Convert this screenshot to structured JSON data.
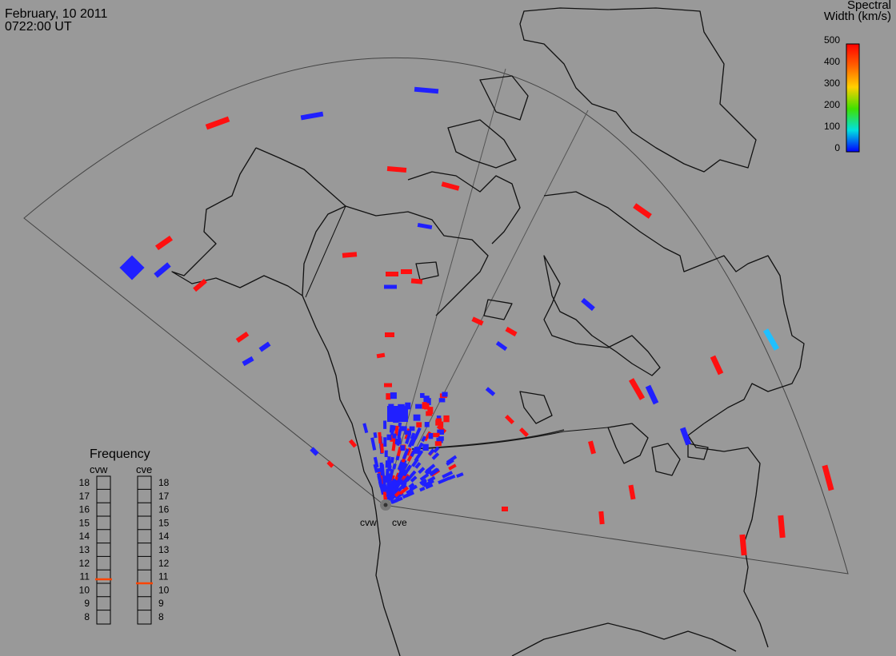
{
  "header": {
    "date": "February, 10 2011",
    "time": "0722:00 UT"
  },
  "colorbar": {
    "title_line1": "Spectral",
    "title_line2": "Width (km/s)",
    "ticks": [
      "500",
      "400",
      "300",
      "200",
      "100",
      "0"
    ],
    "colors": [
      "#ff0000",
      "#ff8000",
      "#ffff00",
      "#00ff00",
      "#00ffff",
      "#0000ff"
    ]
  },
  "frequency_panel": {
    "title": "Frequency",
    "radars": [
      {
        "name": "cvw",
        "value": 10.8
      },
      {
        "name": "cve",
        "value": 10.5
      }
    ],
    "scale": [
      "18",
      "17",
      "16",
      "15",
      "14",
      "13",
      "12",
      "11",
      "10",
      "9",
      "8"
    ],
    "marker_color": "#ff4400"
  },
  "radars": [
    {
      "name": "cvw"
    },
    {
      "name": "cve"
    }
  ],
  "colors": {
    "low": "#2020ff",
    "high": "#ff1010",
    "mid": "#20c0ff",
    "background": "#999999"
  }
}
